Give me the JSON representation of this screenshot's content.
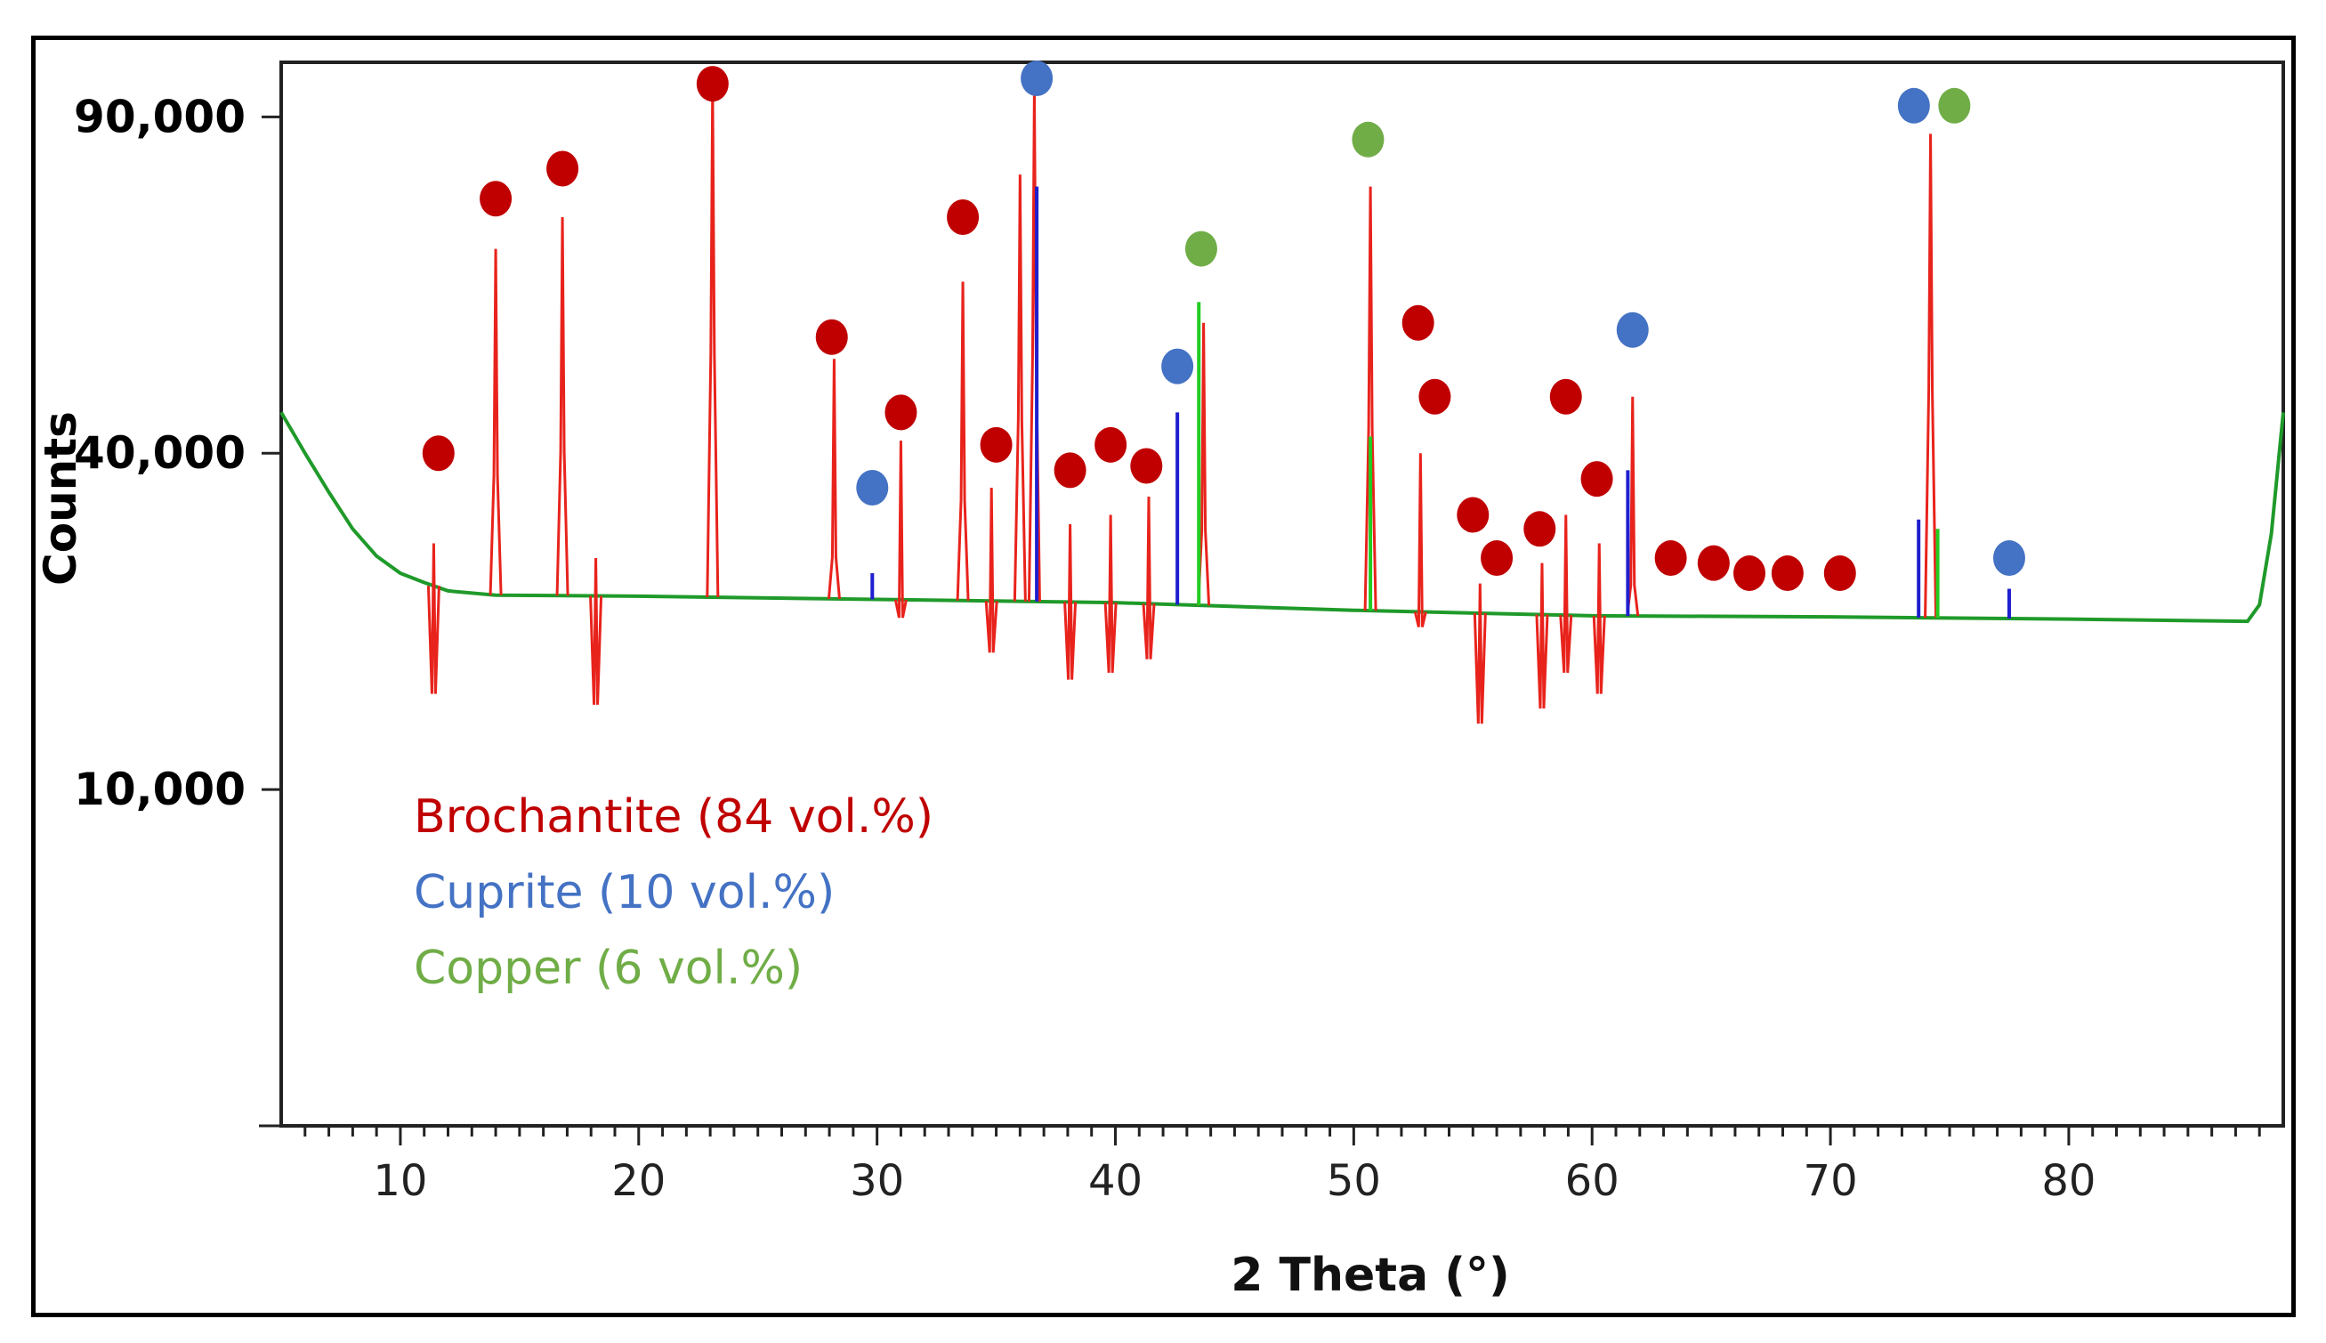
{
  "chart_data": {
    "type": "line",
    "title": "",
    "xlabel": "2 Theta (°)",
    "ylabel": "Counts",
    "xlim": [
      5,
      89
    ],
    "ylim_sqrt_scale": [
      0,
      100000
    ],
    "x_ticks": [
      10,
      20,
      30,
      40,
      50,
      60,
      70,
      80
    ],
    "y_ticks": [
      {
        "value": 10000,
        "label": "10,000"
      },
      {
        "value": 40000,
        "label": "40,000"
      },
      {
        "value": 90000,
        "label": "90,000"
      }
    ],
    "legend": [
      {
        "label": "Brochantite (84 vol.%)",
        "color": "#c00000"
      },
      {
        "label": "Cuprite (10 vol.%)",
        "color": "#4472c4"
      },
      {
        "label": "Copper (6 vol.%)",
        "color": "#70ad47"
      }
    ],
    "background_points": [
      [
        5,
        45000
      ],
      [
        6,
        40000
      ],
      [
        7,
        35500
      ],
      [
        8,
        31500
      ],
      [
        9,
        28700
      ],
      [
        10,
        27000
      ],
      [
        11,
        26100
      ],
      [
        12,
        25300
      ],
      [
        14,
        24900
      ],
      [
        20,
        24800
      ],
      [
        30,
        24500
      ],
      [
        40,
        24200
      ],
      [
        50,
        23500
      ],
      [
        60,
        23000
      ],
      [
        70,
        22900
      ],
      [
        80,
        22700
      ],
      [
        87.5,
        22500
      ],
      [
        88,
        24000
      ],
      [
        88.5,
        31000
      ],
      [
        89,
        45000
      ]
    ],
    "series": [
      {
        "name": "Brochantite",
        "color": "#e8231c",
        "peaks": [
          [
            11.4,
            30000
          ],
          [
            14.0,
            68000
          ],
          [
            16.8,
            73000
          ],
          [
            18.2,
            28500
          ],
          [
            23.1,
            96000
          ],
          [
            28.2,
            52000
          ],
          [
            31.0,
            41500
          ],
          [
            33.6,
            63000
          ],
          [
            34.8,
            36000
          ],
          [
            36.0,
            80000
          ],
          [
            36.6,
            95000
          ],
          [
            38.1,
            32000
          ],
          [
            39.8,
            33000
          ],
          [
            41.4,
            35000
          ],
          [
            43.7,
            57000
          ],
          [
            50.7,
            78000
          ],
          [
            52.8,
            40000
          ],
          [
            55.3,
            26000
          ],
          [
            57.9,
            28000
          ],
          [
            58.9,
            33000
          ],
          [
            60.3,
            30000
          ],
          [
            61.7,
            47000
          ],
          [
            74.2,
            87000
          ]
        ]
      },
      {
        "name": "Cuprite",
        "color": "#1f1fcf",
        "peaks": [
          [
            29.8,
            27000
          ],
          [
            36.7,
            78000
          ],
          [
            42.6,
            45000
          ],
          [
            61.5,
            38000
          ],
          [
            73.7,
            32500
          ],
          [
            77.5,
            25500
          ]
        ]
      },
      {
        "name": "Copper",
        "color": "#22cc22",
        "peaks": [
          [
            43.5,
            60000
          ],
          [
            50.7,
            42000
          ],
          [
            74.5,
            31500
          ]
        ]
      }
    ],
    "markers": [
      {
        "phase": "Brochantite",
        "color": "#c00000",
        "points": [
          [
            11.6,
            40000
          ],
          [
            14.0,
            76000
          ],
          [
            16.8,
            81000
          ],
          [
            23.1,
            96000
          ],
          [
            28.1,
            55000
          ],
          [
            31.0,
            45000
          ],
          [
            33.6,
            73000
          ],
          [
            35.0,
            41000
          ],
          [
            38.1,
            38000
          ],
          [
            39.8,
            41000
          ],
          [
            41.3,
            38500
          ],
          [
            52.7,
            57000
          ],
          [
            53.4,
            47000
          ],
          [
            55.0,
            33000
          ],
          [
            56.0,
            28500
          ],
          [
            57.8,
            31500
          ],
          [
            58.9,
            47000
          ],
          [
            60.2,
            37000
          ],
          [
            63.3,
            28500
          ],
          [
            65.1,
            28000
          ],
          [
            66.6,
            27000
          ],
          [
            68.2,
            27000
          ],
          [
            70.4,
            27000
          ]
        ]
      },
      {
        "phase": "Cuprite",
        "color": "#4472c4",
        "points": [
          [
            29.8,
            36000
          ],
          [
            36.7,
            97000
          ],
          [
            42.6,
            51000
          ],
          [
            61.7,
            56000
          ],
          [
            73.5,
            92000
          ],
          [
            77.5,
            28500
          ]
        ]
      },
      {
        "phase": "Copper",
        "color": "#70ad47",
        "points": [
          [
            43.6,
            68000
          ],
          [
            50.6,
            86000
          ],
          [
            75.2,
            92000
          ]
        ]
      }
    ]
  }
}
